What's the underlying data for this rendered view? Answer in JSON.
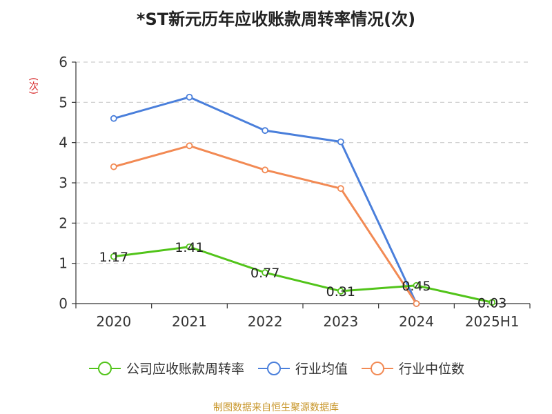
{
  "chart_data": {
    "type": "line",
    "title": "*ST新元历年应收账款周转率情况(次)",
    "ylabel": "(次)",
    "xlabel": "",
    "categories": [
      "2020",
      "2021",
      "2022",
      "2023",
      "2024",
      "2025H1"
    ],
    "ylim": [
      0,
      6
    ],
    "yticks": [
      0,
      1,
      2,
      3,
      4,
      5,
      6
    ],
    "grid": true,
    "legend_position": "bottom",
    "series": [
      {
        "name": "公司应收账款周转率",
        "color": "#52c41a",
        "values": [
          1.17,
          1.41,
          0.77,
          0.31,
          0.45,
          0.03
        ],
        "labels": [
          "1.17",
          "1.41",
          "0.77",
          "0.31",
          "0.45",
          "0.03"
        ]
      },
      {
        "name": "行业均值",
        "color": "#4a7fdb",
        "values": [
          4.6,
          5.13,
          4.3,
          4.02,
          0.0,
          null
        ]
      },
      {
        "name": "行业中位数",
        "color": "#f28a54",
        "values": [
          3.4,
          3.92,
          3.32,
          2.86,
          0.0,
          null
        ]
      }
    ]
  },
  "source_text": "制图数据来自恒生聚源数据库"
}
